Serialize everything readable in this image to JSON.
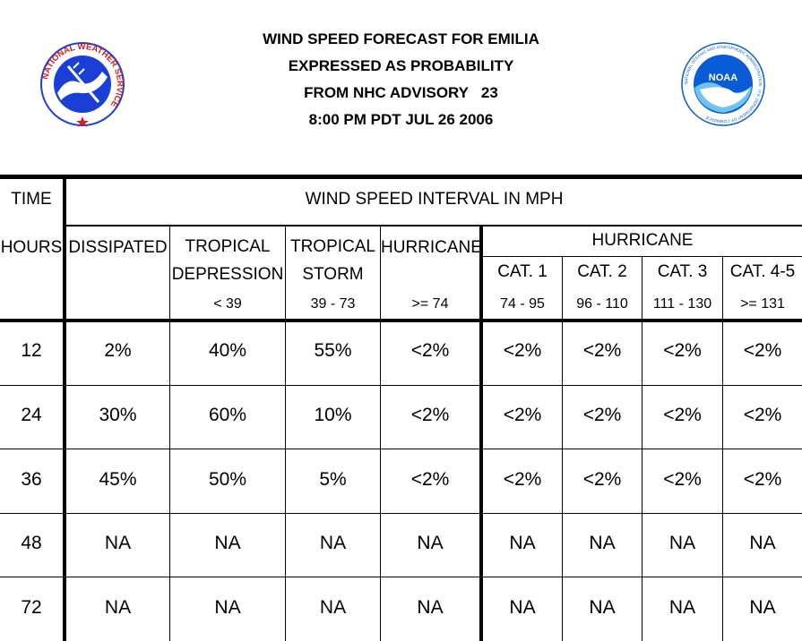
{
  "header": {
    "line1": "WIND SPEED FORECAST FOR EMILIA",
    "line2": "EXPRESSED AS PROBABILITY",
    "line3": "FROM NHC ADVISORY   23",
    "line4": "8:00 PM PDT JUL 26 2006"
  },
  "logos": {
    "nws_text": "NATIONAL WEATHER SERVICE",
    "noaa_text": "NOAA",
    "noaa_ring_text": "NATIONAL OCEANIC AND ATMOSPHERIC ADMINISTRATION · U.S. DEPARTMENT OF COMMERCE",
    "colors": {
      "blue": "#1a3fd6",
      "red": "#d42020",
      "noaa_blue": "#0a5bd8"
    }
  },
  "table": {
    "time_label": "TIME",
    "interval_label": "WIND SPEED INTERVAL IN MPH",
    "hours_label": "HOURS",
    "columns": {
      "dissipated": "DISSIPATED",
      "td_1": "TROPICAL",
      "td_2": "DEPRESSION",
      "td_range": "< 39",
      "ts_1": "TROPICAL",
      "ts_2": "STORM",
      "ts_range": "39 - 73",
      "hurricane": "HURRICANE",
      "hurricane_range": ">= 74",
      "hurricane_group": "HURRICANE",
      "cat1": "CAT. 1",
      "cat1_range": "74 - 95",
      "cat2": "CAT. 2",
      "cat2_range": "96 - 110",
      "cat3": "CAT. 3",
      "cat3_range": "111 - 130",
      "cat45": "CAT. 4-5",
      "cat45_range": ">= 131"
    },
    "rows": [
      {
        "hours": "12",
        "dissipated": "2%",
        "td": "40%",
        "ts": "55%",
        "hur": "<2%",
        "c1": "<2%",
        "c2": "<2%",
        "c3": "<2%",
        "c45": "<2%"
      },
      {
        "hours": "24",
        "dissipated": "30%",
        "td": "60%",
        "ts": "10%",
        "hur": "<2%",
        "c1": "<2%",
        "c2": "<2%",
        "c3": "<2%",
        "c45": "<2%"
      },
      {
        "hours": "36",
        "dissipated": "45%",
        "td": "50%",
        "ts": "5%",
        "hur": "<2%",
        "c1": "<2%",
        "c2": "<2%",
        "c3": "<2%",
        "c45": "<2%"
      },
      {
        "hours": "48",
        "dissipated": "NA",
        "td": "NA",
        "ts": "NA",
        "hur": "NA",
        "c1": "NA",
        "c2": "NA",
        "c3": "NA",
        "c45": "NA"
      },
      {
        "hours": "72",
        "dissipated": "NA",
        "td": "NA",
        "ts": "NA",
        "hur": "NA",
        "c1": "NA",
        "c2": "NA",
        "c3": "NA",
        "c45": "NA"
      }
    ]
  }
}
